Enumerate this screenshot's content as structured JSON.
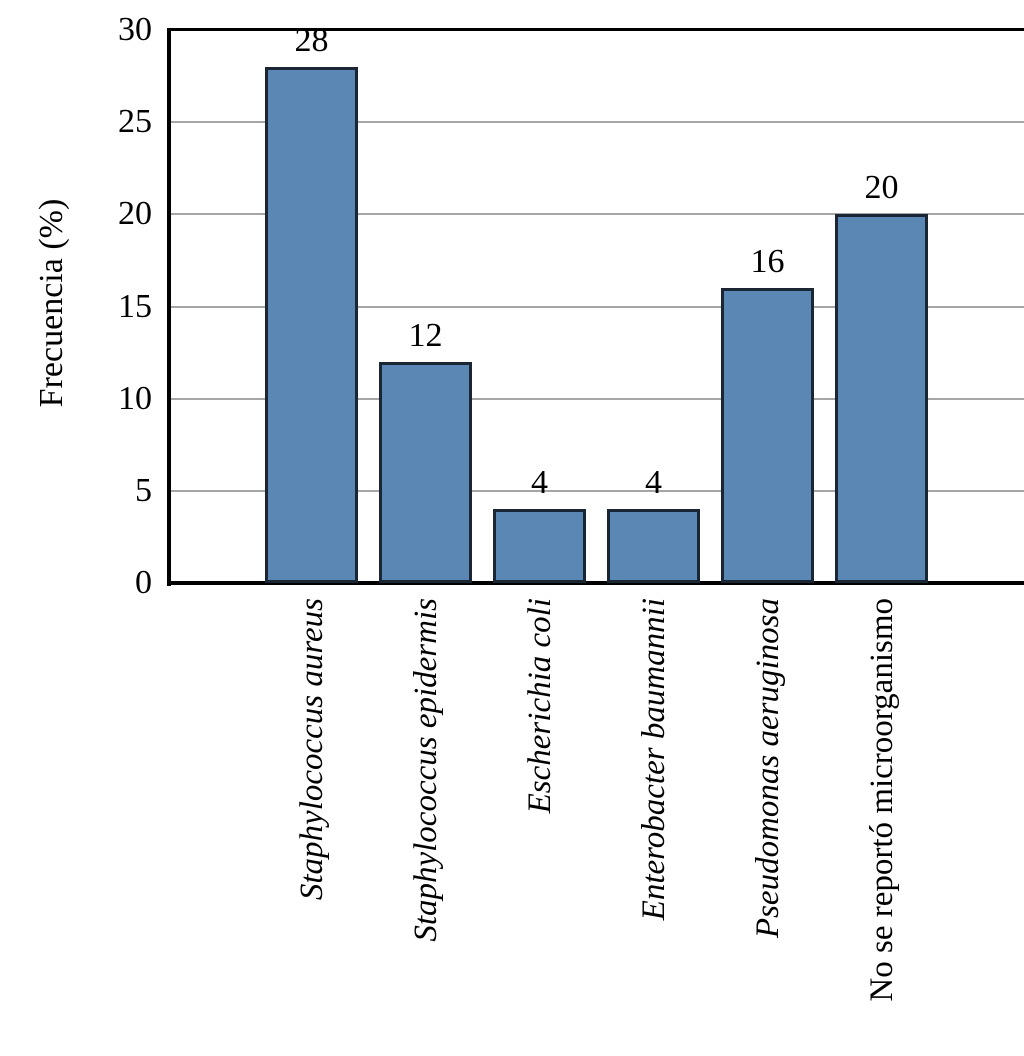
{
  "chart_data": {
    "type": "bar",
    "title": "",
    "xlabel": "",
    "ylabel": "Frecuencia (%)",
    "ylim": [
      0,
      30
    ],
    "ytick_step": 5,
    "yticks": [
      "0",
      "5",
      "10",
      "15",
      "20",
      "25",
      "30"
    ],
    "grid": "horizontal gridlines, plot framed on top/left/bottom",
    "legend": "none",
    "categories": [
      {
        "label": "Staphylococcus aureus",
        "italic": true
      },
      {
        "label": "Staphylococcus epidermis",
        "italic": true
      },
      {
        "label": "Escherichia coli",
        "italic": true
      },
      {
        "label": "Enterobacter baumannii",
        "italic": true
      },
      {
        "label": "Pseudomonas aeruginosa",
        "italic": true
      },
      {
        "label": "No se reportó microorganismo",
        "italic": false
      }
    ],
    "values": [
      28,
      12,
      4,
      4,
      16,
      20
    ],
    "value_labels": [
      "28",
      "12",
      "4",
      "4",
      "16",
      "20"
    ],
    "colors": {
      "bar_fill": "#5b87b4",
      "bar_border": "#1a2633",
      "axis": "#000000",
      "gridline": "#a6a6a6",
      "text": "#000000",
      "background": "#ffffff"
    }
  }
}
